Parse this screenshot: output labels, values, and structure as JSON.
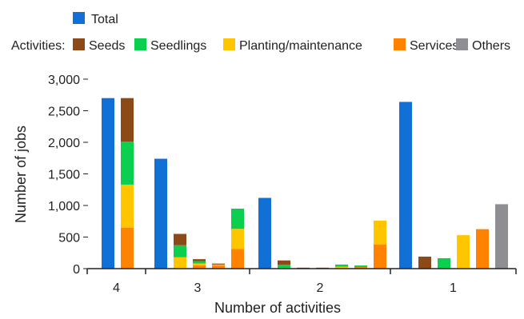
{
  "chart_data": {
    "type": "bar",
    "stacked": true,
    "title": "",
    "xlabel": "Number of activities",
    "ylabel": "Number of jobs",
    "ylim": [
      0,
      3000
    ],
    "yticks": [
      0,
      500,
      1000,
      1500,
      2000,
      2500,
      3000
    ],
    "ytick_labels": [
      "0",
      "500",
      "1,000",
      "1,500",
      "2,000",
      "2,500",
      "3,000"
    ],
    "grid": false,
    "legend": {
      "position": "top-left",
      "total_label": "Total",
      "activities_label": "Activities:"
    },
    "series": [
      {
        "name": "Total",
        "color": "#1170d6"
      },
      {
        "name": "Seeds",
        "color": "#8b4a17"
      },
      {
        "name": "Seedlings",
        "color": "#0dcf4f"
      },
      {
        "name": "Planting/maintenance",
        "color": "#ffc600"
      },
      {
        "name": "Services",
        "color": "#ff8200"
      },
      {
        "name": "Others",
        "color": "#8e8e93"
      }
    ],
    "groups": [
      {
        "label": "4",
        "bars": [
          {
            "type": "total",
            "value": 2700
          },
          {
            "type": "stack",
            "segments": {
              "Services": 650,
              "Planting/maintenance": 680,
              "Seedlings": 680,
              "Seeds": 690
            }
          }
        ]
      },
      {
        "label": "3",
        "bars": [
          {
            "type": "total",
            "value": 1740
          },
          {
            "type": "stack",
            "segments": {
              "Planting/maintenance": 180,
              "Seedlings": 190,
              "Seeds": 180
            }
          },
          {
            "type": "stack",
            "segments": {
              "Services": 50,
              "Planting/maintenance": 30,
              "Seedlings": 40,
              "Seeds": 30
            }
          },
          {
            "type": "stack",
            "segments": {
              "Services": 50,
              "Planting/maintenance": 15,
              "Seeds": 15
            }
          },
          {
            "type": "stack",
            "segments": {
              "Services": 310,
              "Planting/maintenance": 320,
              "Seedlings": 320
            }
          }
        ]
      },
      {
        "label": "2",
        "bars": [
          {
            "type": "total",
            "value": 1120
          },
          {
            "type": "stack",
            "segments": {
              "Seedlings": 60,
              "Seeds": 70
            }
          },
          {
            "type": "stack",
            "segments": {
              "Planting/maintenance": 5,
              "Seeds": 10
            }
          },
          {
            "type": "stack",
            "segments": {
              "Services": 5,
              "Seeds": 10
            }
          },
          {
            "type": "stack",
            "segments": {
              "Planting/maintenance": 30,
              "Seedlings": 35
            }
          },
          {
            "type": "stack",
            "segments": {
              "Services": 25,
              "Seedlings": 25
            }
          },
          {
            "type": "stack",
            "segments": {
              "Services": 380,
              "Planting/maintenance": 380
            }
          }
        ]
      },
      {
        "label": "1",
        "bars": [
          {
            "type": "total",
            "value": 2640
          },
          {
            "type": "stack",
            "segments": {
              "Seeds": 190
            }
          },
          {
            "type": "stack",
            "segments": {
              "Seedlings": 165
            }
          },
          {
            "type": "stack",
            "segments": {
              "Planting/maintenance": 530
            }
          },
          {
            "type": "stack",
            "segments": {
              "Services": 625
            }
          },
          {
            "type": "stack",
            "segments": {
              "Others": 1020
            }
          }
        ]
      }
    ]
  }
}
